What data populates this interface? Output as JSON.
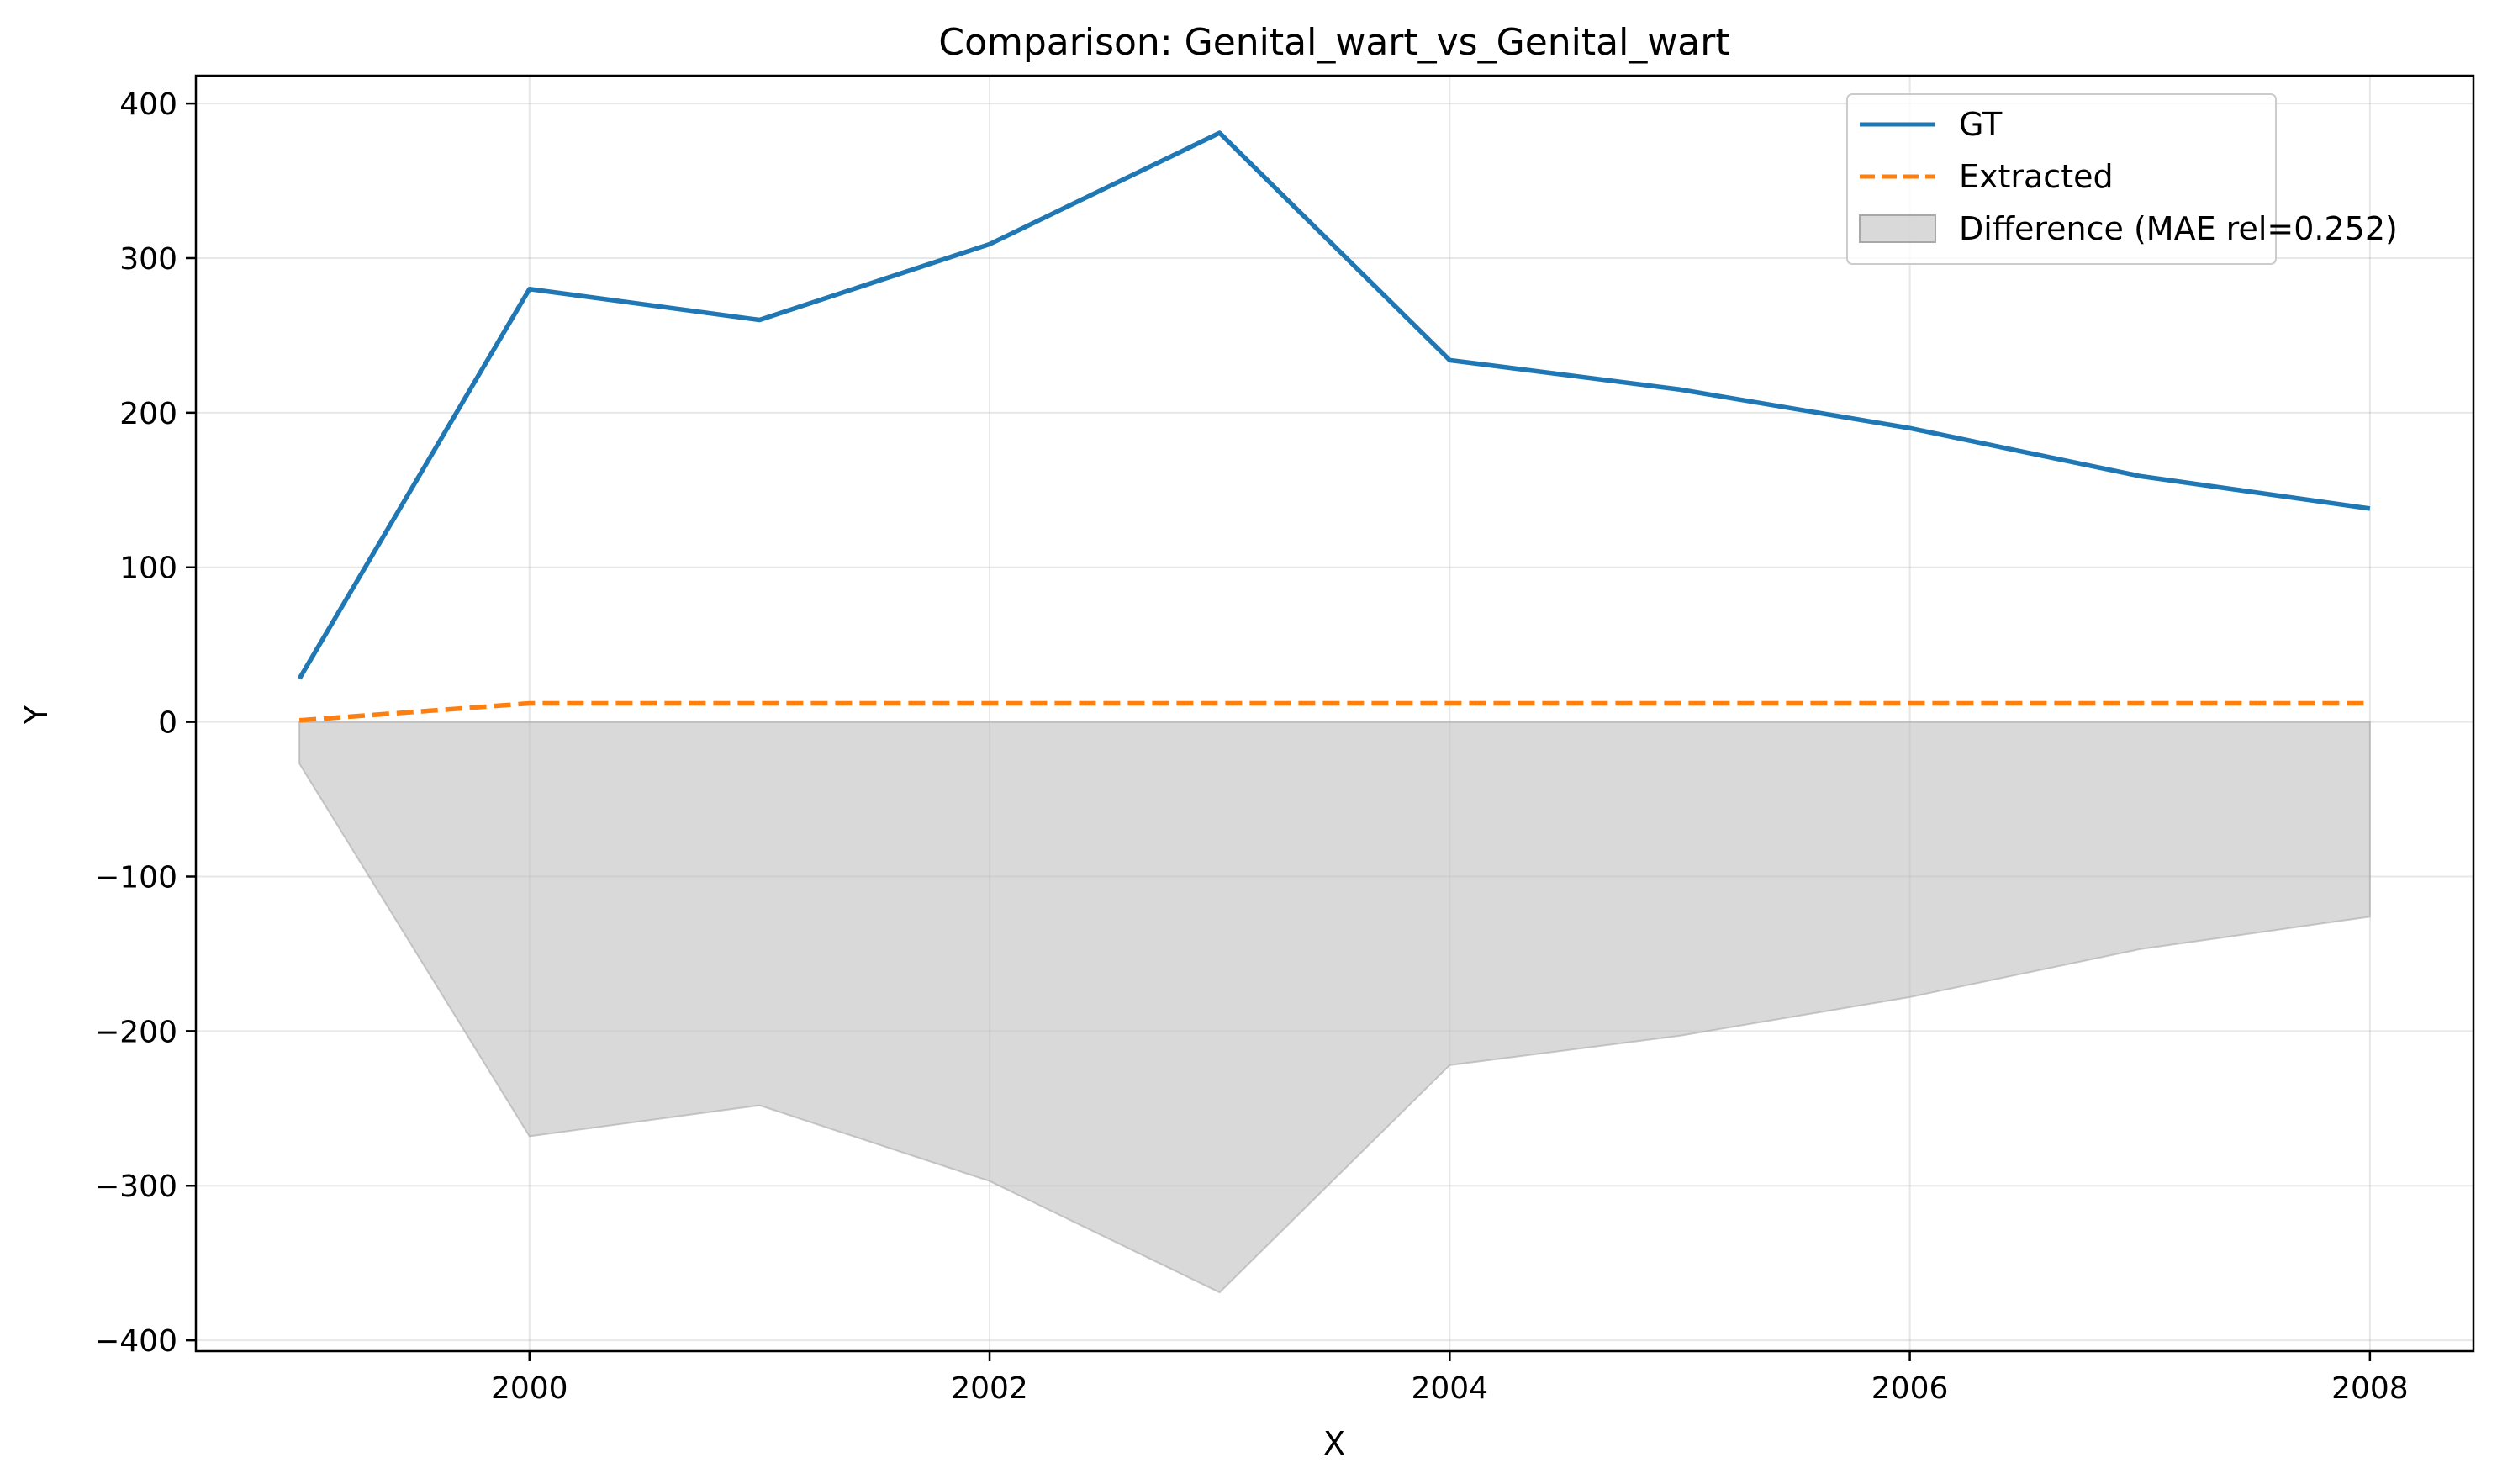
{
  "chart_data": {
    "type": "line",
    "title": "Comparison: Genital_wart_vs_Genital_wart",
    "xlabel": "X",
    "ylabel": "Y",
    "xlim": [
      1998.55,
      2008.45
    ],
    "ylim": [
      -407,
      418
    ],
    "xticks": [
      2000,
      2002,
      2004,
      2006,
      2008
    ],
    "xtick_labels": [
      "2000",
      "2002",
      "2004",
      "2006",
      "2008"
    ],
    "yticks": [
      400,
      300,
      200,
      100,
      0,
      -100,
      -200,
      -300,
      -400
    ],
    "ytick_labels": [
      "400",
      "300",
      "200",
      "100",
      "0",
      "−100",
      "−200",
      "−300",
      "−400"
    ],
    "grid": true,
    "legend_position": "top-right",
    "x": [
      1999,
      2000,
      2001,
      2002,
      2003,
      2004,
      2005,
      2006,
      2007,
      2008
    ],
    "series": [
      {
        "name": "GT",
        "color": "#1f77b4",
        "style": "solid",
        "values": [
          28,
          280,
          260,
          309,
          381,
          234,
          215,
          190,
          159,
          138
        ]
      },
      {
        "name": "Extracted",
        "color": "#ff7f0e",
        "style": "dashed",
        "values": [
          1,
          12,
          12,
          12,
          12,
          12,
          12,
          12,
          12,
          12
        ]
      }
    ],
    "difference": {
      "name": "Difference (MAE rel=0.252)",
      "color": "#bfbfbf",
      "values": [
        -27,
        -268,
        -248,
        -297,
        -369,
        -222,
        -203,
        -178,
        -147,
        -126
      ]
    }
  }
}
